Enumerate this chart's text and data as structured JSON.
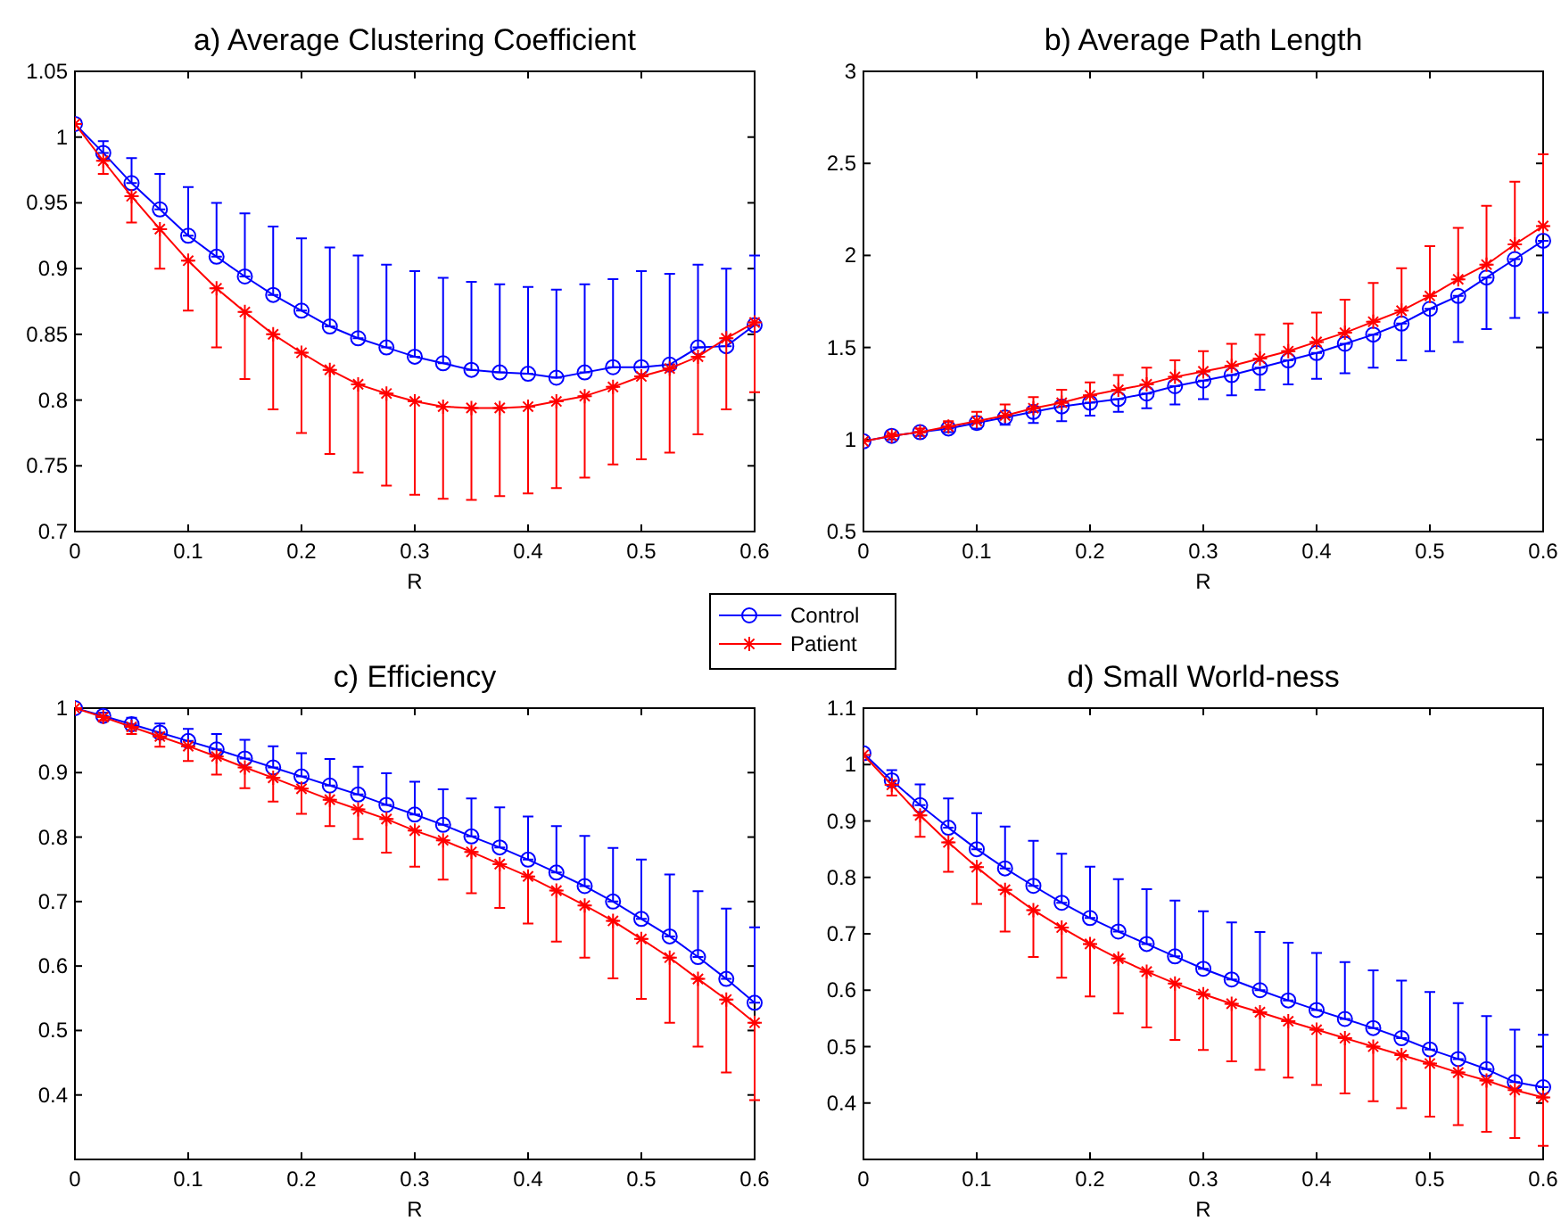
{
  "chart_data": [
    {
      "type": "line",
      "title": "a) Average Clustering Coefficient",
      "xlabel": "R",
      "x": [
        0,
        0.025,
        0.05,
        0.075,
        0.1,
        0.125,
        0.15,
        0.175,
        0.2,
        0.225,
        0.25,
        0.275,
        0.3,
        0.325,
        0.35,
        0.375,
        0.4,
        0.425,
        0.45,
        0.475,
        0.5,
        0.525,
        0.55,
        0.575,
        0.6
      ],
      "xlim": [
        0,
        0.6
      ],
      "xticks": [
        0,
        0.1,
        0.2,
        0.3,
        0.4,
        0.5,
        0.6
      ],
      "ylim": [
        0.7,
        1.05
      ],
      "yticks": [
        0.7,
        0.75,
        0.8,
        0.85,
        0.9,
        0.95,
        1,
        1.05
      ],
      "legend": "bottom right",
      "series": [
        {
          "name": "Control",
          "color": "#0000ff",
          "marker": "circle",
          "values": [
            1.01,
            0.988,
            0.965,
            0.945,
            0.925,
            0.909,
            0.894,
            0.88,
            0.868,
            0.856,
            0.847,
            0.84,
            0.833,
            0.828,
            0.823,
            0.821,
            0.82,
            0.817,
            0.821,
            0.825,
            0.825,
            0.827,
            0.84,
            0.841,
            0.857
          ],
          "errors": [
            null,
            [
              0.988,
              0.997
            ],
            [
              0.965,
              0.984
            ],
            [
              0.945,
              0.972
            ],
            [
              0.925,
              0.962
            ],
            [
              0.909,
              0.95
            ],
            [
              0.894,
              0.942
            ],
            [
              0.88,
              0.932
            ],
            [
              0.868,
              0.923
            ],
            [
              0.856,
              0.916
            ],
            [
              0.847,
              0.91
            ],
            [
              0.84,
              0.903
            ],
            [
              0.833,
              0.898
            ],
            [
              0.828,
              0.893
            ],
            [
              0.823,
              0.89
            ],
            [
              0.821,
              0.888
            ],
            [
              0.82,
              0.886
            ],
            [
              0.817,
              0.884
            ],
            [
              0.821,
              0.888
            ],
            [
              0.825,
              0.892
            ],
            [
              0.825,
              0.898
            ],
            [
              0.827,
              0.896
            ],
            [
              0.84,
              0.903
            ],
            [
              0.841,
              0.9
            ],
            [
              0.857,
              0.91
            ]
          ]
        },
        {
          "name": "Patient",
          "color": "#ff0000",
          "marker": "cross",
          "values": [
            1.01,
            0.982,
            0.955,
            0.93,
            0.906,
            0.885,
            0.867,
            0.85,
            0.836,
            0.823,
            0.812,
            0.805,
            0.799,
            0.795,
            0.794,
            0.794,
            0.795,
            0.799,
            0.803,
            0.81,
            0.818,
            0.824,
            0.833,
            0.847,
            0.859
          ],
          "errors": [
            null,
            [
              0.972,
              0.982
            ],
            [
              0.935,
              0.955
            ],
            [
              0.9,
              0.93
            ],
            [
              0.868,
              0.906
            ],
            [
              0.84,
              0.885
            ],
            [
              0.816,
              0.867
            ],
            [
              0.793,
              0.85
            ],
            [
              0.775,
              0.836
            ],
            [
              0.759,
              0.823
            ],
            [
              0.745,
              0.812
            ],
            [
              0.735,
              0.805
            ],
            [
              0.728,
              0.799
            ],
            [
              0.725,
              0.795
            ],
            [
              0.724,
              0.794
            ],
            [
              0.727,
              0.794
            ],
            [
              0.729,
              0.795
            ],
            [
              0.733,
              0.799
            ],
            [
              0.741,
              0.803
            ],
            [
              0.751,
              0.81
            ],
            [
              0.755,
              0.818
            ],
            [
              0.76,
              0.824
            ],
            [
              0.774,
              0.833
            ],
            [
              0.793,
              0.847
            ],
            [
              0.806,
              0.859
            ]
          ]
        }
      ]
    },
    {
      "type": "line",
      "title": "b) Average Path Length",
      "xlabel": "R",
      "x": [
        0,
        0.025,
        0.05,
        0.075,
        0.1,
        0.125,
        0.15,
        0.175,
        0.2,
        0.225,
        0.25,
        0.275,
        0.3,
        0.325,
        0.35,
        0.375,
        0.4,
        0.425,
        0.45,
        0.475,
        0.5,
        0.525,
        0.55,
        0.575,
        0.6
      ],
      "xlim": [
        0,
        0.6
      ],
      "xticks": [
        0,
        0.1,
        0.2,
        0.3,
        0.4,
        0.5,
        0.6
      ],
      "ylim": [
        0.5,
        3
      ],
      "yticks": [
        0.5,
        1,
        1.5,
        2,
        2.5,
        3
      ],
      "series": [
        {
          "color": "#0000ff",
          "marker": "circle",
          "values": [
            0.99,
            1.02,
            1.04,
            1.06,
            1.09,
            1.12,
            1.15,
            1.18,
            1.2,
            1.22,
            1.25,
            1.29,
            1.32,
            1.35,
            1.39,
            1.43,
            1.47,
            1.52,
            1.57,
            1.63,
            1.71,
            1.78,
            1.88,
            1.98,
            2.08
          ],
          "errors": [
            null,
            [
              1,
              1.02
            ],
            [
              1.02,
              1.04
            ],
            [
              1.04,
              1.06
            ],
            [
              1.06,
              1.09
            ],
            [
              1.08,
              1.12
            ],
            [
              1.09,
              1.15
            ],
            [
              1.1,
              1.18
            ],
            [
              1.13,
              1.2
            ],
            [
              1.15,
              1.22
            ],
            [
              1.17,
              1.25
            ],
            [
              1.19,
              1.29
            ],
            [
              1.22,
              1.32
            ],
            [
              1.24,
              1.35
            ],
            [
              1.27,
              1.39
            ],
            [
              1.3,
              1.43
            ],
            [
              1.33,
              1.47
            ],
            [
              1.36,
              1.52
            ],
            [
              1.39,
              1.57
            ],
            [
              1.43,
              1.63
            ],
            [
              1.48,
              1.71
            ],
            [
              1.53,
              1.78
            ],
            [
              1.6,
              1.88
            ],
            [
              1.66,
              1.98
            ],
            [
              1.69,
              2.08
            ]
          ]
        },
        {
          "color": "#ff0000",
          "marker": "cross",
          "values": [
            0.99,
            1.02,
            1.04,
            1.07,
            1.1,
            1.13,
            1.17,
            1.2,
            1.24,
            1.27,
            1.3,
            1.34,
            1.37,
            1.4,
            1.44,
            1.48,
            1.53,
            1.58,
            1.64,
            1.7,
            1.78,
            1.87,
            1.95,
            2.06,
            2.16
          ],
          "errors": [
            null,
            [
              1.02,
              1.03
            ],
            [
              1.04,
              1.06
            ],
            [
              1.07,
              1.1
            ],
            [
              1.1,
              1.15
            ],
            [
              1.13,
              1.19
            ],
            [
              1.17,
              1.23
            ],
            [
              1.2,
              1.27
            ],
            [
              1.24,
              1.31
            ],
            [
              1.27,
              1.35
            ],
            [
              1.3,
              1.39
            ],
            [
              1.34,
              1.43
            ],
            [
              1.37,
              1.48
            ],
            [
              1.4,
              1.52
            ],
            [
              1.44,
              1.57
            ],
            [
              1.48,
              1.63
            ],
            [
              1.53,
              1.69
            ],
            [
              1.58,
              1.76
            ],
            [
              1.64,
              1.85
            ],
            [
              1.7,
              1.93
            ],
            [
              1.78,
              2.05
            ],
            [
              1.87,
              2.15
            ],
            [
              1.95,
              2.27
            ],
            [
              2.06,
              2.4
            ],
            [
              2.16,
              2.55
            ]
          ]
        }
      ]
    },
    {
      "type": "line",
      "title": "c) Efficiency",
      "xlabel": "R",
      "x": [
        0,
        0.025,
        0.05,
        0.075,
        0.1,
        0.125,
        0.15,
        0.175,
        0.2,
        0.225,
        0.25,
        0.275,
        0.3,
        0.325,
        0.35,
        0.375,
        0.4,
        0.425,
        0.45,
        0.475,
        0.5,
        0.525,
        0.55,
        0.575,
        0.6
      ],
      "xlim": [
        0,
        0.6
      ],
      "xticks": [
        0,
        0.1,
        0.2,
        0.3,
        0.4,
        0.5,
        0.6
      ],
      "ylim": [
        0.3,
        1
      ],
      "yticks": [
        0.4,
        0.5,
        0.6,
        0.7,
        0.8,
        0.9,
        1
      ],
      "series": [
        {
          "color": "#0000ff",
          "marker": "circle",
          "values": [
            1,
            0.988,
            0.975,
            0.962,
            0.949,
            0.936,
            0.922,
            0.908,
            0.894,
            0.88,
            0.866,
            0.85,
            0.835,
            0.819,
            0.801,
            0.784,
            0.765,
            0.745,
            0.724,
            0.7,
            0.673,
            0.646,
            0.614,
            0.58,
            0.543
          ],
          "errors": [
            null,
            [
              0.988,
              0.993
            ],
            [
              0.975,
              0.985
            ],
            [
              0.962,
              0.976
            ],
            [
              0.949,
              0.968
            ],
            [
              0.936,
              0.96
            ],
            [
              0.922,
              0.951
            ],
            [
              0.908,
              0.941
            ],
            [
              0.894,
              0.93
            ],
            [
              0.88,
              0.921
            ],
            [
              0.866,
              0.909
            ],
            [
              0.85,
              0.899
            ],
            [
              0.835,
              0.886
            ],
            [
              0.819,
              0.874
            ],
            [
              0.801,
              0.86
            ],
            [
              0.784,
              0.846
            ],
            [
              0.765,
              0.832
            ],
            [
              0.745,
              0.817
            ],
            [
              0.724,
              0.802
            ],
            [
              0.7,
              0.783
            ],
            [
              0.673,
              0.765
            ],
            [
              0.646,
              0.742
            ],
            [
              0.614,
              0.716
            ],
            [
              0.58,
              0.689
            ],
            [
              0.543,
              0.66
            ]
          ]
        },
        {
          "color": "#ff0000",
          "marker": "cross",
          "values": [
            1,
            0.986,
            0.971,
            0.956,
            0.941,
            0.925,
            0.908,
            0.892,
            0.875,
            0.858,
            0.843,
            0.828,
            0.81,
            0.795,
            0.777,
            0.758,
            0.739,
            0.717,
            0.694,
            0.67,
            0.642,
            0.613,
            0.58,
            0.548,
            0.512
          ],
          "errors": [
            null,
            [
              0.981,
              0.986
            ],
            [
              0.96,
              0.971
            ],
            [
              0.94,
              0.956
            ],
            [
              0.918,
              0.941
            ],
            [
              0.897,
              0.925
            ],
            [
              0.876,
              0.908
            ],
            [
              0.855,
              0.892
            ],
            [
              0.836,
              0.875
            ],
            [
              0.817,
              0.858
            ],
            [
              0.797,
              0.843
            ],
            [
              0.776,
              0.828
            ],
            [
              0.754,
              0.81
            ],
            [
              0.734,
              0.795
            ],
            [
              0.713,
              0.777
            ],
            [
              0.69,
              0.758
            ],
            [
              0.666,
              0.739
            ],
            [
              0.638,
              0.717
            ],
            [
              0.613,
              0.694
            ],
            [
              0.581,
              0.67
            ],
            [
              0.549,
              0.642
            ],
            [
              0.512,
              0.613
            ],
            [
              0.475,
              0.58
            ],
            [
              0.435,
              0.548
            ],
            [
              0.392,
              0.512
            ]
          ]
        }
      ]
    },
    {
      "type": "line",
      "title": "d) Small World-ness",
      "xlabel": "R",
      "x": [
        0,
        0.025,
        0.05,
        0.075,
        0.1,
        0.125,
        0.15,
        0.175,
        0.2,
        0.225,
        0.25,
        0.275,
        0.3,
        0.325,
        0.35,
        0.375,
        0.4,
        0.425,
        0.45,
        0.475,
        0.5,
        0.525,
        0.55,
        0.575,
        0.6
      ],
      "xlim": [
        0,
        0.6
      ],
      "xticks": [
        0,
        0.1,
        0.2,
        0.3,
        0.4,
        0.5,
        0.6
      ],
      "ylim": [
        0.3,
        1.1
      ],
      "yticks": [
        0.4,
        0.5,
        0.6,
        0.7,
        0.8,
        0.9,
        1,
        1.1
      ],
      "series": [
        {
          "color": "#0000ff",
          "marker": "circle",
          "values": [
            1.02,
            0.972,
            0.928,
            0.888,
            0.85,
            0.816,
            0.785,
            0.755,
            0.728,
            0.704,
            0.682,
            0.66,
            0.638,
            0.619,
            0.6,
            0.582,
            0.565,
            0.549,
            0.533,
            0.515,
            0.495,
            0.478,
            0.46,
            0.437,
            0.428
          ],
          "errors": [
            null,
            [
              0.972,
              0.99
            ],
            [
              0.928,
              0.965
            ],
            [
              0.888,
              0.94
            ],
            [
              0.85,
              0.914
            ],
            [
              0.816,
              0.89
            ],
            [
              0.785,
              0.865
            ],
            [
              0.755,
              0.842
            ],
            [
              0.728,
              0.819
            ],
            [
              0.704,
              0.797
            ],
            [
              0.682,
              0.779
            ],
            [
              0.66,
              0.759
            ],
            [
              0.638,
              0.74
            ],
            [
              0.619,
              0.72
            ],
            [
              0.6,
              0.703
            ],
            [
              0.582,
              0.684
            ],
            [
              0.565,
              0.666
            ],
            [
              0.549,
              0.65
            ],
            [
              0.533,
              0.635
            ],
            [
              0.515,
              0.617
            ],
            [
              0.495,
              0.597
            ],
            [
              0.478,
              0.577
            ],
            [
              0.46,
              0.554
            ],
            [
              0.437,
              0.53
            ],
            [
              0.428,
              0.521
            ]
          ]
        },
        {
          "color": "#ff0000",
          "marker": "cross",
          "values": [
            1.017,
            0.964,
            0.91,
            0.862,
            0.818,
            0.778,
            0.742,
            0.711,
            0.682,
            0.656,
            0.633,
            0.612,
            0.593,
            0.576,
            0.561,
            0.545,
            0.53,
            0.515,
            0.5,
            0.485,
            0.47,
            0.454,
            0.44,
            0.423,
            0.41
          ],
          "errors": [
            null,
            [
              0.945,
              0.964
            ],
            [
              0.872,
              0.91
            ],
            [
              0.81,
              0.862
            ],
            [
              0.753,
              0.818
            ],
            [
              0.704,
              0.778
            ],
            [
              0.659,
              0.742
            ],
            [
              0.622,
              0.711
            ],
            [
              0.589,
              0.682
            ],
            [
              0.559,
              0.656
            ],
            [
              0.534,
              0.633
            ],
            [
              0.512,
              0.612
            ],
            [
              0.494,
              0.593
            ],
            [
              0.474,
              0.576
            ],
            [
              0.459,
              0.561
            ],
            [
              0.445,
              0.545
            ],
            [
              0.432,
              0.53
            ],
            [
              0.417,
              0.515
            ],
            [
              0.403,
              0.5
            ],
            [
              0.391,
              0.485
            ],
            [
              0.376,
              0.47
            ],
            [
              0.361,
              0.454
            ],
            [
              0.349,
              0.44
            ],
            [
              0.338,
              0.423
            ],
            [
              0.324,
              0.41
            ]
          ]
        }
      ]
    }
  ]
}
